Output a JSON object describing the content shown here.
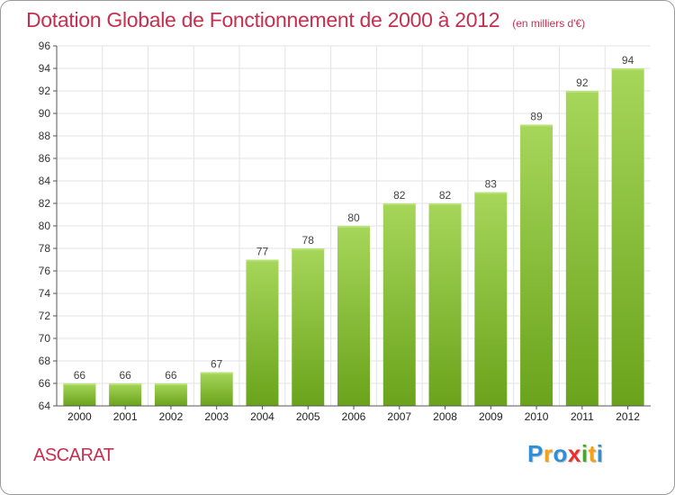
{
  "chart_data": {
    "type": "bar",
    "title": "Dotation Globale de Fonctionnement de 2000 à 2012",
    "subtitle": "(en milliers d'€)",
    "categories": [
      "2000",
      "2001",
      "2002",
      "2003",
      "2004",
      "2005",
      "2006",
      "2007",
      "2008",
      "2009",
      "2010",
      "2011",
      "2012"
    ],
    "values": [
      66,
      66,
      66,
      67,
      77,
      78,
      80,
      82,
      82,
      83,
      89,
      92,
      94
    ],
    "ylim": [
      64,
      96
    ],
    "ytick_step": 2,
    "grid": true,
    "xlabel": "",
    "ylabel": ""
  },
  "footer": {
    "commune": "ASCARAT",
    "logo": {
      "letters": [
        "P",
        "r",
        "o",
        "x",
        "i",
        "t",
        "i"
      ],
      "colors": [
        "#2e8fd6",
        "#f0a21b",
        "#2e8fd6",
        "#e8302c",
        "#4aa72e",
        "#f0a21b",
        "#2e8fd6"
      ]
    }
  },
  "colors": {
    "title": "#c4304f",
    "bar_light": "#a6d65a",
    "bar_dark": "#6aa31b",
    "grid": "#e3e3e3",
    "axis": "#555555"
  }
}
